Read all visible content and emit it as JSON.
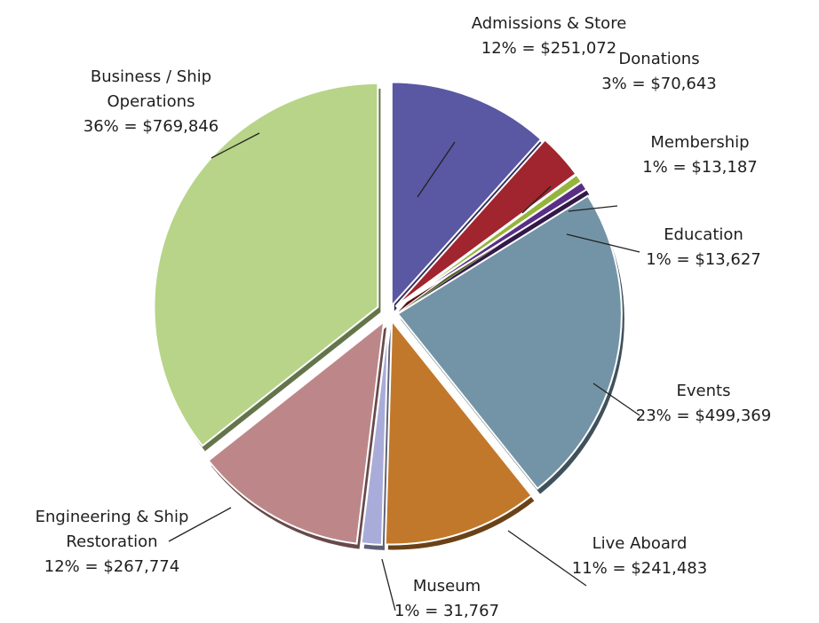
{
  "chart_data": {
    "type": "pie",
    "title": "",
    "start_angle_deg": 0,
    "direction": "clockwise",
    "exploded": true,
    "slices": [
      {
        "name": "Admissions & Store",
        "label_lines": [
          "Admissions & Store",
          "12% = $251,072"
        ],
        "percent": 12,
        "value": 251072,
        "color": "#5a57a3"
      },
      {
        "name": "Donations",
        "label_lines": [
          "Donations",
          "3% = $70,643"
        ],
        "percent": 3,
        "value": 70643,
        "color": "#a0252e"
      },
      {
        "name": "Membership",
        "label_lines": [
          "Membership",
          "1% = $13,187"
        ],
        "percent": 1,
        "value": 13187,
        "color": "#95b43c"
      },
      {
        "name": "Education",
        "label_lines": [
          "Education",
          "1% = $13,627"
        ],
        "percent": 1,
        "value": 13627,
        "color": "#5a2e86"
      },
      {
        "name": "Events",
        "label_lines": [
          "Events",
          "23% = $499,369"
        ],
        "percent": 23,
        "value": 499369,
        "color": "#7394a6"
      },
      {
        "name": "Live Aboard",
        "label_lines": [
          "Live Aboard",
          "11% = $241,483"
        ],
        "percent": 11,
        "value": 241483,
        "color": "#c2782a"
      },
      {
        "name": "Museum",
        "label_lines": [
          "Museum",
          "1% = 31,767"
        ],
        "percent": 1,
        "value": 31767,
        "color": "#a9acd8"
      },
      {
        "name": "Engineering & Ship Restoration",
        "label_lines": [
          "Engineering & Ship",
          "Restoration",
          "12% = $267,774"
        ],
        "percent": 12,
        "value": 267774,
        "color": "#bd8789"
      },
      {
        "name": "Business / Ship Operations",
        "label_lines": [
          "Business / Ship",
          "Operations",
          "36% = $769,846"
        ],
        "percent": 36,
        "value": 769846,
        "color": "#b7d488"
      }
    ]
  }
}
